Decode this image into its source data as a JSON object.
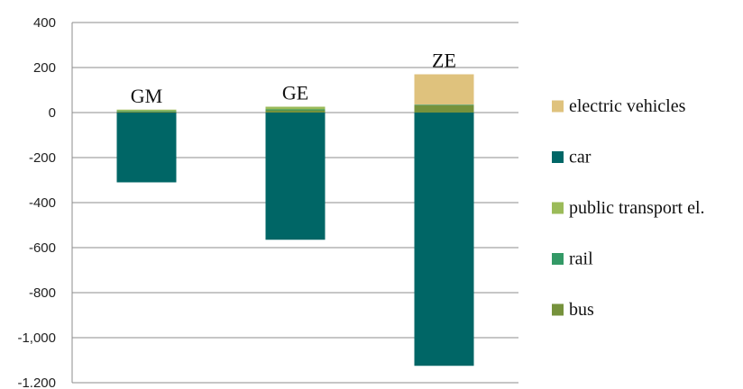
{
  "chart_data": {
    "type": "bar",
    "stacked": true,
    "categories": [
      "GM",
      "GE",
      "ZE"
    ],
    "series": [
      {
        "name": "bus",
        "values": [
          4,
          10,
          32
        ],
        "color": "#76923c"
      },
      {
        "name": "rail",
        "values": [
          3,
          4,
          3
        ],
        "color": "#339966"
      },
      {
        "name": "public transport el.",
        "values": [
          6,
          12,
          0
        ],
        "color": "#9bbb59"
      },
      {
        "name": "car",
        "values": [
          -310,
          -565,
          -1125
        ],
        "color": "#006666"
      },
      {
        "name": "electric vehicles",
        "values": [
          0,
          0,
          135
        ],
        "color": "#dfc27d"
      }
    ],
    "legend_order": [
      "electric vehicles",
      "car",
      "public transport el.",
      "rail",
      "bus"
    ],
    "legend_position": "right",
    "ylim": [
      -1200,
      400
    ],
    "yticks": [
      400,
      200,
      0,
      -200,
      -400,
      -600,
      -800,
      -1000,
      -1200
    ],
    "ytick_labels": [
      "400",
      "200",
      "0",
      "-200",
      "-400",
      "-600",
      "-800",
      "-1,000",
      "-1.200"
    ],
    "grid": "horizontal",
    "title": "",
    "xlabel": "",
    "ylabel": ""
  }
}
